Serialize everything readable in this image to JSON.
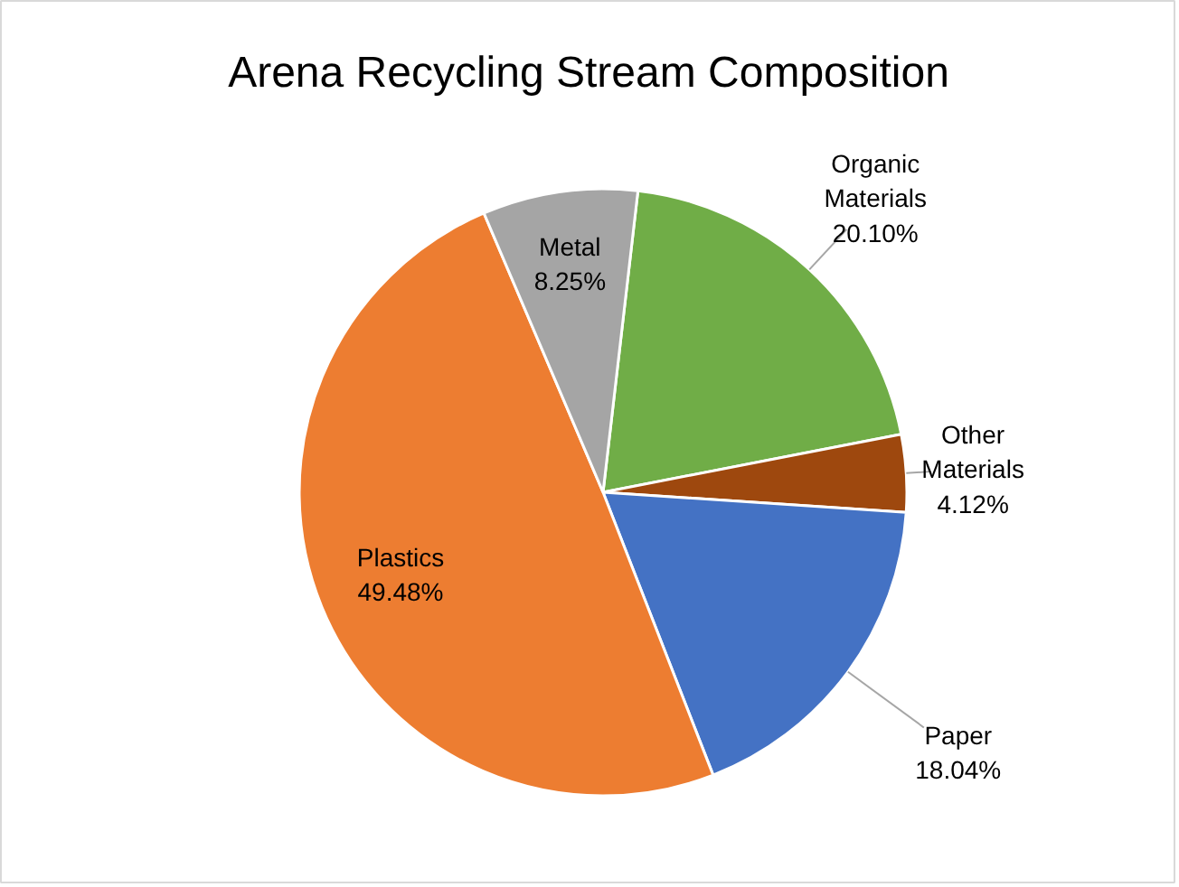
{
  "chart_data": {
    "type": "pie",
    "title": "Arena Recycling Stream Composition",
    "categories": [
      "Organic Materials",
      "Other Materials",
      "Paper",
      "Plastics",
      "Metal"
    ],
    "values": [
      20.1,
      4.12,
      18.04,
      49.48,
      8.25
    ],
    "colors": [
      "#70ad47",
      "#9e480e",
      "#4472c4",
      "#ed7d31",
      "#a5a5a5"
    ],
    "value_labels": [
      "20.10%",
      "4.12%",
      "18.04%",
      "49.48%",
      "8.25%"
    ]
  }
}
